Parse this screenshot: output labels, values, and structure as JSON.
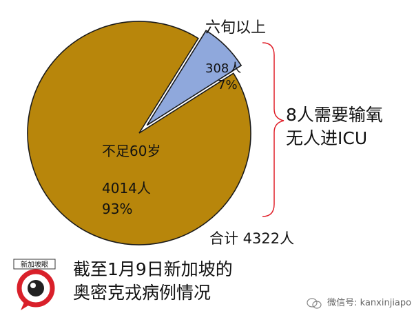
{
  "chart_data": {
    "type": "pie",
    "title": "",
    "slices": [
      {
        "label": "六旬以上",
        "count_label": "308人",
        "pct_label": "7%",
        "value": 308,
        "color": "#8fa8dc",
        "exploded": true
      },
      {
        "label": "不足60岁",
        "count_label": "4014人",
        "pct_label": "93%",
        "value": 4014,
        "color": "#b8860b",
        "exploded": false
      }
    ],
    "total_label": "合计 4322人"
  },
  "annotation": {
    "line1": "8人需要输氧",
    "line2": "无人进ICU",
    "brace_color": "#e0202a"
  },
  "caption": {
    "line1": "截至1月9日新加坡的",
    "line2": "奥密克戎病例情况"
  },
  "logo": {
    "text": "新加坡眼",
    "accent": "#d9202a"
  },
  "watermark": {
    "text": "微信号: kanxinjiapo"
  }
}
